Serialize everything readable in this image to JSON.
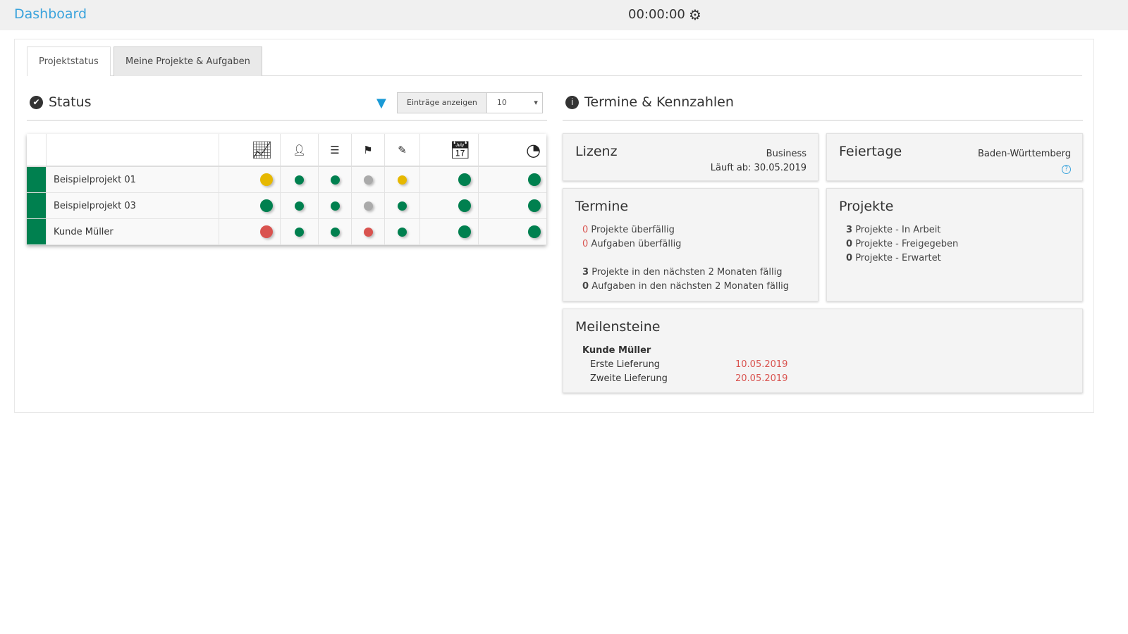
{
  "header": {
    "title": "Dashboard",
    "timer": "00:00:00",
    "settings_icon": "gear-icon"
  },
  "tabs": [
    {
      "label": "Projektstatus",
      "active": false
    },
    {
      "label": "Meine Projekte & Aufgaben",
      "active": true
    }
  ],
  "status": {
    "title": "Status",
    "icon": "check-circle-icon",
    "filter_icon": "filter-icon",
    "entries_label": "Einträge anzeigen",
    "entries_value": "10",
    "columns": [
      "chart-line-icon",
      "user-times-icon",
      "align-center-icon",
      "flag-icon",
      "edit-icon",
      "calendar-icon",
      "tachometer-icon"
    ],
    "colors": {
      "green": "#00804f",
      "yellow": "#e6b800",
      "gray": "#aaaaaa",
      "red": "#d9534f"
    },
    "rows": [
      {
        "name": "Beispielprojekt 01",
        "status": [
          "yellow",
          "green",
          "green",
          "gray",
          "yellow",
          "green",
          "green"
        ]
      },
      {
        "name": "Beispielprojekt 03",
        "status": [
          "green",
          "green",
          "green",
          "gray",
          "green",
          "green",
          "green"
        ]
      },
      {
        "name": "Kunde Müller",
        "status": [
          "red",
          "green",
          "green",
          "red",
          "green",
          "green",
          "green"
        ]
      }
    ]
  },
  "termine_section": {
    "title": "Termine & Kennzahlen",
    "icon": "info-circle-icon"
  },
  "lizenz": {
    "title": "Lizenz",
    "type": "Business",
    "expires": "Läuft ab: 30.05.2019"
  },
  "feiertage": {
    "title": "Feiertage",
    "region": "Baden-Württemberg",
    "help_icon": "question-circle-icon"
  },
  "termine": {
    "title": "Termine",
    "items": [
      {
        "count": "0",
        "text": "Projekte überfällig",
        "highlight": true
      },
      {
        "count": "0",
        "text": "Aufgaben überfällig",
        "highlight": true
      },
      {
        "count": "3",
        "text": "Projekte in den nächsten 2 Monaten fällig",
        "highlight": false
      },
      {
        "count": "0",
        "text": "Aufgaben in den nächsten 2 Monaten fällig",
        "highlight": false
      }
    ]
  },
  "projekte": {
    "title": "Projekte",
    "items": [
      {
        "count": "3",
        "text": "Projekte - In Arbeit"
      },
      {
        "count": "0",
        "text": "Projekte - Freigegeben"
      },
      {
        "count": "0",
        "text": "Projekte - Erwartet"
      }
    ]
  },
  "meilensteine": {
    "title": "Meilensteine",
    "project": "Kunde Müller",
    "items": [
      {
        "name": "Erste Lieferung",
        "date": "10.05.2019"
      },
      {
        "name": "Zweite Lieferung",
        "date": "20.05.2019"
      }
    ]
  }
}
